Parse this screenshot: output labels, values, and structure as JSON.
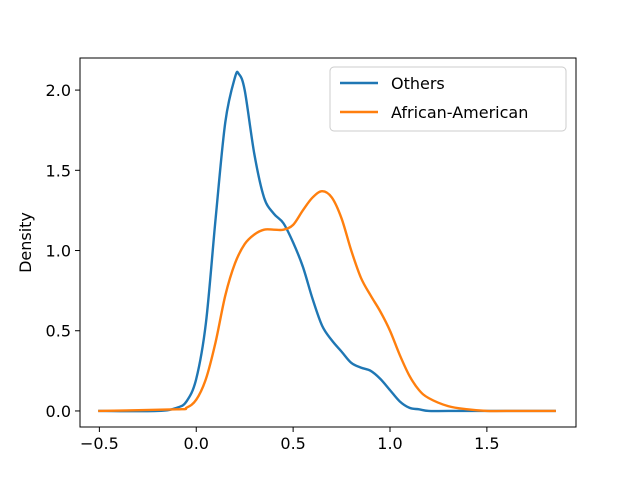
{
  "chart_data": {
    "type": "line",
    "title": "",
    "xlabel": "",
    "ylabel": "Density",
    "xlim": [
      -0.6,
      1.96
    ],
    "ylim": [
      -0.1,
      2.2
    ],
    "x_ticks": [
      -0.5,
      0.0,
      0.5,
      1.0,
      1.5
    ],
    "x_tick_labels": [
      "−0.5",
      "0.0",
      "0.5",
      "1.0",
      "1.5"
    ],
    "y_ticks": [
      0.0,
      0.5,
      1.0,
      1.5,
      2.0
    ],
    "y_tick_labels": [
      "0.0",
      "0.5",
      "1.0",
      "1.5",
      "2.0"
    ],
    "grid": false,
    "legend_position": "top-right",
    "series": [
      {
        "name": "Others",
        "color": "#1f77b4",
        "x": [
          -0.5,
          -0.2,
          -0.1,
          -0.05,
          0.0,
          0.05,
          0.1,
          0.15,
          0.2,
          0.22,
          0.25,
          0.3,
          0.35,
          0.4,
          0.45,
          0.5,
          0.55,
          0.6,
          0.65,
          0.7,
          0.75,
          0.8,
          0.85,
          0.9,
          0.95,
          1.0,
          1.05,
          1.1,
          1.15,
          1.2,
          1.3,
          1.5,
          1.85
        ],
        "y": [
          0.0,
          0.0,
          0.02,
          0.06,
          0.2,
          0.55,
          1.2,
          1.8,
          2.08,
          2.1,
          2.0,
          1.6,
          1.33,
          1.23,
          1.17,
          1.05,
          0.9,
          0.7,
          0.53,
          0.44,
          0.37,
          0.3,
          0.27,
          0.25,
          0.2,
          0.13,
          0.06,
          0.02,
          0.01,
          0.0,
          0.0,
          0.0,
          0.0
        ]
      },
      {
        "name": "African-American",
        "color": "#ff7f0e",
        "x": [
          -0.5,
          -0.1,
          -0.05,
          0.0,
          0.05,
          0.1,
          0.15,
          0.2,
          0.25,
          0.3,
          0.35,
          0.4,
          0.45,
          0.5,
          0.55,
          0.6,
          0.65,
          0.7,
          0.75,
          0.8,
          0.85,
          0.9,
          0.95,
          1.0,
          1.05,
          1.1,
          1.15,
          1.2,
          1.3,
          1.4,
          1.5,
          1.6,
          1.85
        ],
        "y": [
          0.0,
          0.01,
          0.02,
          0.07,
          0.2,
          0.43,
          0.72,
          0.92,
          1.04,
          1.1,
          1.13,
          1.13,
          1.13,
          1.16,
          1.25,
          1.33,
          1.37,
          1.33,
          1.2,
          1.0,
          0.83,
          0.72,
          0.62,
          0.5,
          0.35,
          0.22,
          0.13,
          0.08,
          0.03,
          0.01,
          0.0,
          0.0,
          0.0
        ]
      }
    ]
  }
}
